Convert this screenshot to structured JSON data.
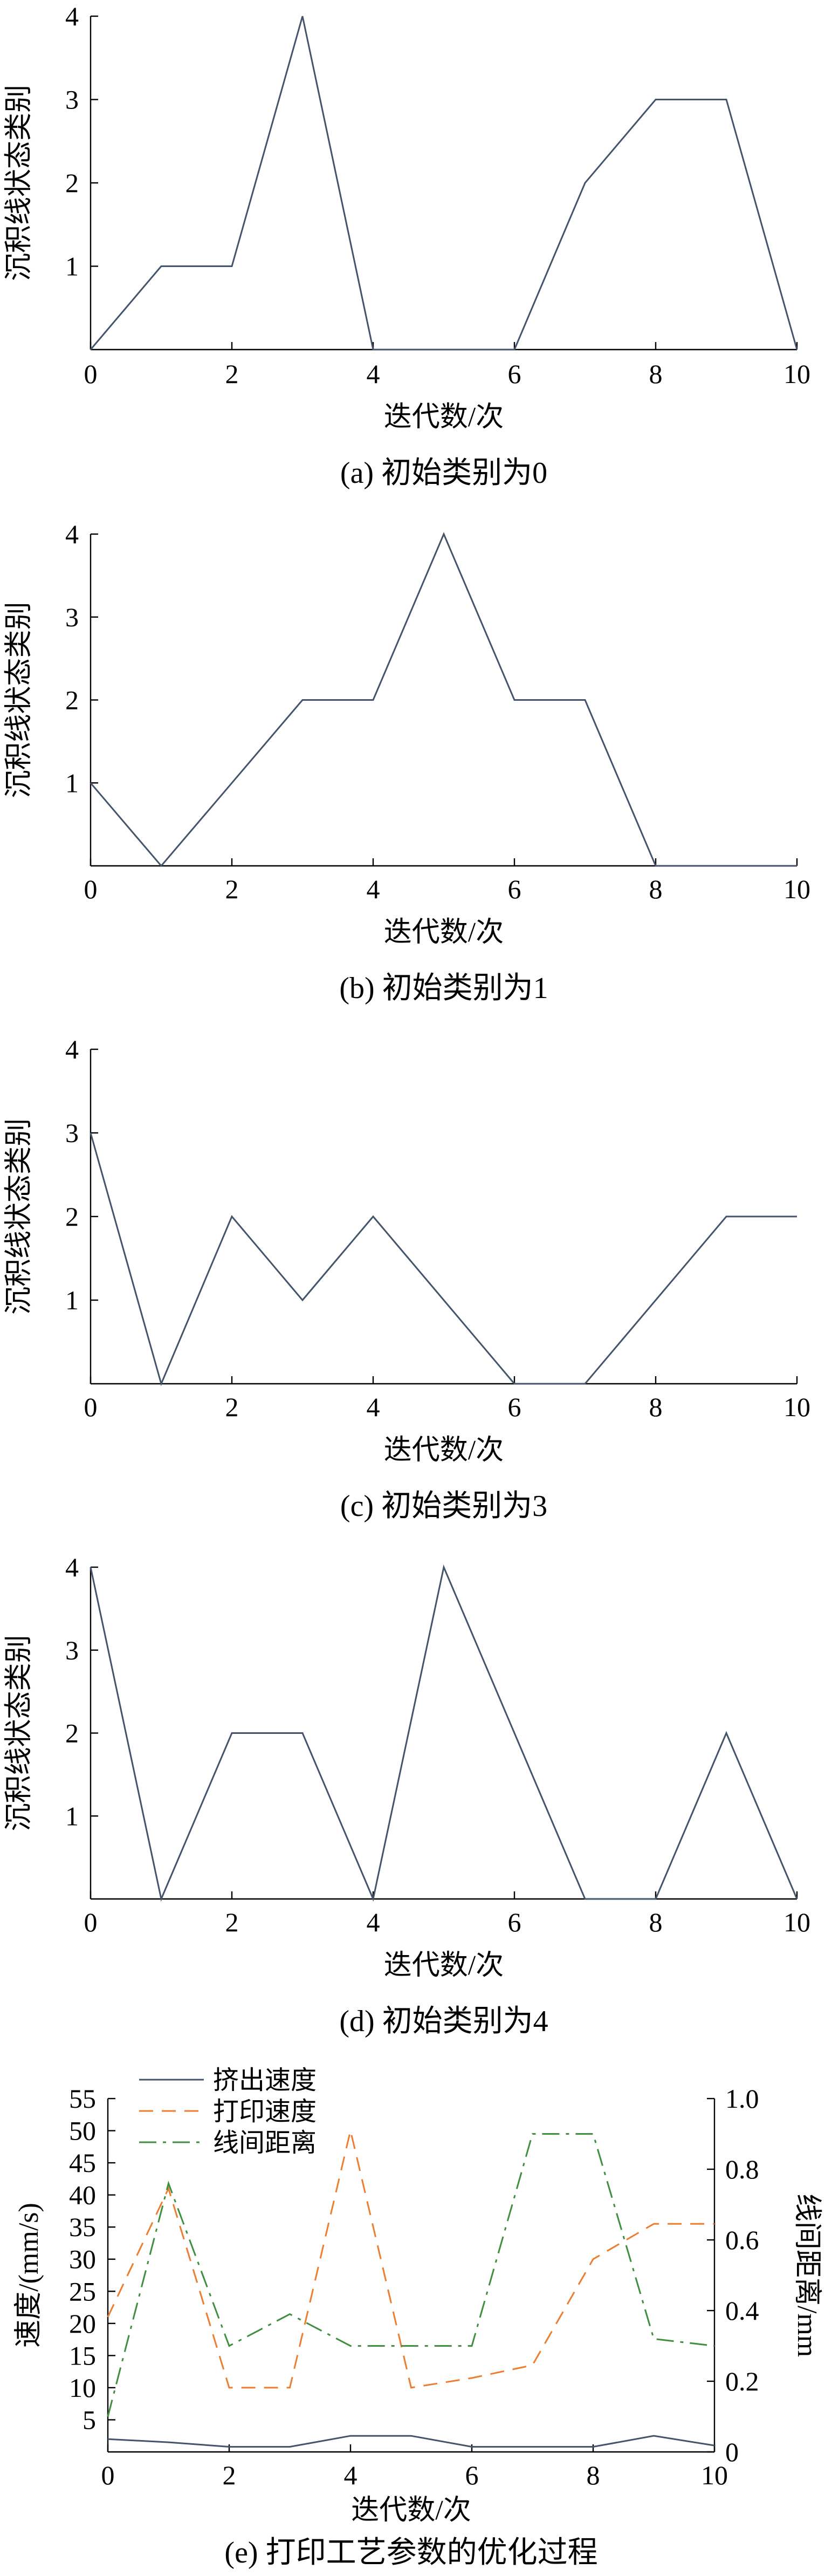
{
  "colors": {
    "blue": "#44546a",
    "orange": "#ed7d31",
    "green": "#3f8f3f",
    "axis": "#000000"
  },
  "chart_data": [
    {
      "type": "line",
      "caption": "(a)  初始类别为0",
      "xlabel": "迭代数/次",
      "ylabel": "沉积线状态类别",
      "xlim": [
        0,
        10
      ],
      "ylim": [
        0,
        4
      ],
      "xticks": [
        "0",
        "2",
        "4",
        "6",
        "8",
        "10"
      ],
      "yticks": [
        "1",
        "2",
        "3",
        "4"
      ],
      "x": [
        0,
        1,
        2,
        3,
        4,
        5,
        6,
        7,
        8,
        9,
        10
      ],
      "series": [
        {
          "values": [
            0,
            1,
            1,
            4,
            0,
            0,
            0,
            2,
            3,
            3,
            0
          ],
          "color": "#44546a"
        }
      ]
    },
    {
      "type": "line",
      "caption": "(b)  初始类别为1",
      "xlabel": "迭代数/次",
      "ylabel": "沉积线状态类别",
      "xlim": [
        0,
        10
      ],
      "ylim": [
        0,
        4
      ],
      "xticks": [
        "0",
        "2",
        "4",
        "6",
        "8",
        "10"
      ],
      "yticks": [
        "1",
        "2",
        "3",
        "4"
      ],
      "x": [
        0,
        1,
        2,
        3,
        4,
        5,
        6,
        7,
        8,
        9,
        10
      ],
      "series": [
        {
          "values": [
            1,
            0,
            1,
            2,
            2,
            4,
            2,
            2,
            0,
            0,
            0
          ],
          "color": "#44546a"
        }
      ]
    },
    {
      "type": "line",
      "caption": "(c)  初始类别为3",
      "xlabel": "迭代数/次",
      "ylabel": "沉积线状态类别",
      "xlim": [
        0,
        10
      ],
      "ylim": [
        0,
        4
      ],
      "xticks": [
        "0",
        "2",
        "4",
        "6",
        "8",
        "10"
      ],
      "yticks": [
        "1",
        "2",
        "3",
        "4"
      ],
      "x": [
        0,
        1,
        2,
        3,
        4,
        5,
        6,
        7,
        8,
        9,
        10
      ],
      "series": [
        {
          "values": [
            3,
            0,
            2,
            1,
            2,
            1,
            0,
            0,
            1,
            2,
            2
          ],
          "color": "#44546a"
        }
      ]
    },
    {
      "type": "line",
      "caption": "(d)  初始类别为4",
      "xlabel": "迭代数/次",
      "ylabel": "沉积线状态类别",
      "xlim": [
        0,
        10
      ],
      "ylim": [
        0,
        4
      ],
      "xticks": [
        "0",
        "2",
        "4",
        "6",
        "8",
        "10"
      ],
      "yticks": [
        "1",
        "2",
        "3",
        "4"
      ],
      "x": [
        0,
        1,
        2,
        3,
        4,
        5,
        6,
        7,
        8,
        9,
        10
      ],
      "series": [
        {
          "values": [
            4,
            0,
            2,
            2,
            0,
            4,
            2,
            0,
            0,
            2,
            0
          ],
          "color": "#44546a"
        }
      ]
    },
    {
      "type": "line",
      "caption": "(e)  打印工艺参数的优化过程",
      "xlabel": "迭代数/次",
      "ylabel": "速度/(mm/s)",
      "y2label": "线间距离/mm",
      "xlim": [
        0,
        10
      ],
      "ylim": [
        0,
        55
      ],
      "y2lim": [
        0,
        1.0
      ],
      "xticks": [
        "0",
        "2",
        "4",
        "6",
        "8",
        "10"
      ],
      "yticks": [
        "5",
        "10",
        "15",
        "20",
        "25",
        "30",
        "35",
        "40",
        "45",
        "50",
        "55"
      ],
      "y2ticks": [
        "0",
        "0.2",
        "0.4",
        "0.6",
        "0.8",
        "1.0"
      ],
      "legend_position": "top-left",
      "x": [
        0,
        1,
        2,
        3,
        4,
        5,
        6,
        7,
        8,
        9,
        10
      ],
      "series": [
        {
          "name": "挤出速度",
          "axis": "left",
          "style": "solid",
          "color": "#44546a",
          "values": [
            2,
            1.5,
            0.8,
            0.8,
            2.5,
            2.5,
            0.8,
            0.8,
            0.8,
            2.5,
            1
          ]
        },
        {
          "name": "打印速度",
          "axis": "left",
          "style": "dashed",
          "color": "#ed7d31",
          "values": [
            21,
            41,
            10,
            10,
            50,
            10,
            11.5,
            13.5,
            30,
            35.5,
            35.5
          ]
        },
        {
          "name": "线间距离",
          "axis": "right",
          "style": "dashdot",
          "color": "#3f8f3f",
          "values": [
            0.1,
            0.76,
            0.3,
            0.39,
            0.3,
            0.3,
            0.3,
            0.9,
            0.9,
            0.32,
            0.3
          ]
        }
      ]
    }
  ]
}
